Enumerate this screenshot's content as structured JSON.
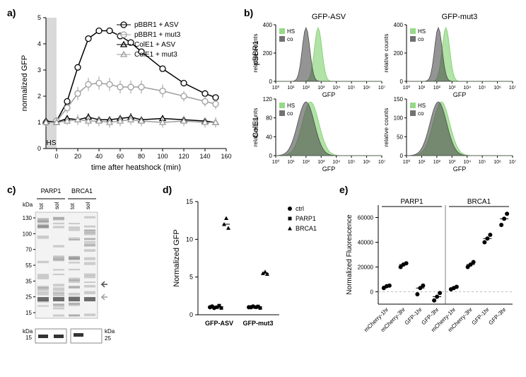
{
  "panels": {
    "a": {
      "label": "a)"
    },
    "b": {
      "label": "b)"
    },
    "c": {
      "label": "c)"
    },
    "d": {
      "label": "d)"
    },
    "e": {
      "label": "e)"
    }
  },
  "chartA": {
    "type": "line",
    "xlabel": "time after heatshock (min)",
    "ylabel": "normalized GFP",
    "xlim": [
      -10,
      160
    ],
    "ylim": [
      0,
      5
    ],
    "xtick_step": 20,
    "ytick_step": 1,
    "xticks": [
      0,
      20,
      40,
      60,
      80,
      100,
      120,
      140,
      160
    ],
    "yticks": [
      0,
      1,
      2,
      3,
      4,
      5
    ],
    "hs_label": "HS",
    "hs_band": [
      -10,
      0
    ],
    "hs_color": "#d9d9d9",
    "series": [
      {
        "name": "pBBR1 + ASV",
        "marker": "circle-open",
        "color": "#000000",
        "x": [
          -10,
          0,
          10,
          20,
          30,
          40,
          50,
          60,
          70,
          80,
          100,
          120,
          140,
          150
        ],
        "y": [
          1.0,
          1.05,
          1.8,
          3.1,
          4.2,
          4.5,
          4.5,
          4.3,
          4.05,
          3.7,
          3.05,
          2.5,
          2.1,
          1.95
        ],
        "err": [
          0.05,
          0.05,
          0.1,
          0.1,
          0.1,
          0.1,
          0.1,
          0.1,
          0.1,
          0.1,
          0.1,
          0.1,
          0.1,
          0.1
        ]
      },
      {
        "name": "pBBR1 + mut3",
        "marker": "circle-open",
        "color": "#9e9e9e",
        "x": [
          -10,
          0,
          10,
          20,
          30,
          40,
          50,
          60,
          70,
          80,
          100,
          120,
          140,
          150
        ],
        "y": [
          1.0,
          1.05,
          1.55,
          2.1,
          2.45,
          2.5,
          2.45,
          2.35,
          2.35,
          2.35,
          2.2,
          2.0,
          1.8,
          1.7
        ],
        "err": [
          0.15,
          0.15,
          0.2,
          0.25,
          0.25,
          0.25,
          0.25,
          0.25,
          0.25,
          0.25,
          0.25,
          0.2,
          0.2,
          0.2
        ]
      },
      {
        "name": "ColE1 + ASV",
        "marker": "triangle-open",
        "color": "#000000",
        "x": [
          -10,
          0,
          10,
          20,
          30,
          40,
          50,
          60,
          70,
          80,
          100,
          120,
          140,
          150
        ],
        "y": [
          1.05,
          1.0,
          1.15,
          1.1,
          1.2,
          1.1,
          1.1,
          1.15,
          1.2,
          1.1,
          1.15,
          1.1,
          1.05,
          1.0
        ],
        "err": [
          0.1,
          0.1,
          0.1,
          0.1,
          0.15,
          0.1,
          0.1,
          0.1,
          0.15,
          0.1,
          0.1,
          0.1,
          0.1,
          0.1
        ]
      },
      {
        "name": "ColE1 + mut3",
        "marker": "triangle-open",
        "color": "#9e9e9e",
        "x": [
          -10,
          0,
          10,
          20,
          30,
          40,
          50,
          60,
          70,
          80,
          100,
          120,
          140,
          150
        ],
        "y": [
          1.0,
          1.0,
          1.05,
          1.1,
          1.05,
          1.05,
          1.0,
          1.05,
          1.1,
          1.05,
          1.0,
          1.05,
          1.0,
          1.0
        ],
        "err": [
          0.1,
          0.1,
          0.15,
          0.2,
          0.2,
          0.2,
          0.2,
          0.2,
          0.2,
          0.2,
          0.2,
          0.2,
          0.2,
          0.2
        ]
      }
    ],
    "axis_color": "#000000",
    "background_color": "#ffffff",
    "label_fontsize": 11,
    "tick_fontsize": 9
  },
  "chartB": {
    "type": "histogram-grid",
    "cols": [
      "GFP-ASV",
      "GFP-mut3"
    ],
    "rows": [
      "pBBR1",
      "ColE1"
    ],
    "ylabel": "relative counts",
    "xlabel": "GFP",
    "x_log": true,
    "xticks_log": [
      "10⁰",
      "10¹",
      "10²",
      "10³",
      "10⁴",
      "10⁵",
      "10⁶",
      "10⁷"
    ],
    "legend": [
      {
        "name": "HS",
        "color": "#7dcf6a"
      },
      {
        "name": "co",
        "color": "#4d4d4d"
      }
    ],
    "panels": [
      {
        "row": "pBBR1",
        "col": "GFP-ASV",
        "ymax": 400,
        "yticks": [
          0,
          200,
          400
        ],
        "hs_peak_log": 2.8,
        "co_peak_log": 2.0
      },
      {
        "row": "pBBR1",
        "col": "GFP-mut3",
        "ymax": 400,
        "yticks": [
          0,
          200,
          400
        ],
        "hs_peak_log": 2.6,
        "co_peak_log": 2.1
      },
      {
        "row": "ColE1",
        "col": "GFP-ASV",
        "ymax": 120,
        "yticks": [
          0,
          40,
          80,
          120
        ],
        "hs_peak_log": 2.3,
        "co_peak_log": 2.0
      },
      {
        "row": "ColE1",
        "col": "GFP-mut3",
        "ymax": 150,
        "yticks": [
          0,
          50,
          100,
          150
        ],
        "hs_peak_log": 2.3,
        "co_peak_log": 2.1
      }
    ],
    "fill_opacity": 0.6
  },
  "panelC": {
    "type": "gel",
    "lane_groups": [
      "PARP1",
      "BRCA1"
    ],
    "lanes": [
      "tot",
      "sol",
      "tot",
      "sol"
    ],
    "ladder_label": "kDa",
    "ladder": [
      130,
      100,
      70,
      55,
      35,
      25,
      15
    ],
    "arrow_color_dark": "#4d4d4d",
    "arrow_color_light": "#9e9e9e",
    "lower_blot_left_kda": 15,
    "lower_blot_right_kda": 25,
    "aspect": 1.5
  },
  "chartD": {
    "type": "scatter",
    "ylabel": "Normalized GFP",
    "ylim": [
      0,
      15
    ],
    "yticks": [
      0,
      5,
      10,
      15
    ],
    "categories": [
      "GFP-ASV",
      "GFP-mut3"
    ],
    "legend": [
      {
        "name": "ctrl",
        "marker": "circle",
        "color": "#000000"
      },
      {
        "name": "PARP1",
        "marker": "square",
        "color": "#000000"
      },
      {
        "name": "BRCA1",
        "marker": "triangle",
        "color": "#000000"
      }
    ],
    "points": {
      "GFP-ASV": {
        "ctrl": [
          1.0,
          1.1,
          0.9
        ],
        "PARP1": [
          1.0,
          1.2,
          0.9
        ],
        "BRCA1": [
          12.0,
          12.8,
          11.5
        ]
      },
      "GFP-mut3": {
        "ctrl": [
          1.0,
          1.0,
          1.1
        ],
        "PARP1": [
          1.0,
          1.1,
          0.9
        ],
        "BRCA1": [
          5.5,
          5.7,
          5.4
        ]
      }
    }
  },
  "chartE": {
    "type": "scatter",
    "ylabel": "Normalized Fluorescence",
    "ylim": [
      -10000,
      70000
    ],
    "yticks": [
      0,
      20000,
      40000,
      60000
    ],
    "groups": [
      "PARP1",
      "BRCA1"
    ],
    "categories": [
      "mCherry-1hr",
      "mCherry-3hr",
      "GFP-1hr",
      "GFP-3hr",
      "mCherry-1hr",
      "mCherry-3hr",
      "GFP-1hr",
      "GFP-3hr"
    ],
    "points": [
      [
        3000,
        4500,
        5000
      ],
      [
        20000,
        22000,
        23000
      ],
      [
        -2000,
        3000,
        5000
      ],
      [
        -7000,
        -4000,
        -1000
      ],
      [
        2000,
        3000,
        4000
      ],
      [
        20000,
        22000,
        24000
      ],
      [
        40000,
        43000,
        46000
      ],
      [
        54000,
        59000,
        63000
      ]
    ],
    "marker_color": "#000000",
    "zero_line_color": "#bfbfbf"
  },
  "colors": {
    "axis": "#000000",
    "bg": "#ffffff"
  },
  "fonts": {
    "label": 11,
    "tick": 9,
    "panel_label": 14
  }
}
